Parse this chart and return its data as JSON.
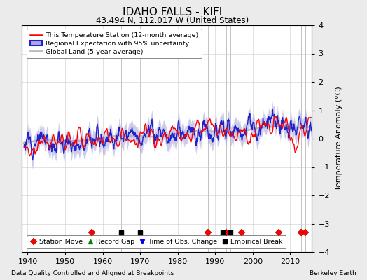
{
  "title": "IDAHO FALLS - KIFI",
  "subtitle": "43.494 N, 112.017 W (United States)",
  "ylabel": "Temperature Anomaly (°C)",
  "xlabel_note": "Data Quality Controlled and Aligned at Breakpoints",
  "source_note": "Berkeley Earth",
  "year_start": 1939,
  "year_end": 2015,
  "ylim": [
    -4,
    4
  ],
  "yticks": [
    -4,
    -3,
    -2,
    -1,
    0,
    1,
    2,
    3,
    4
  ],
  "xticks": [
    1940,
    1950,
    1960,
    1970,
    1980,
    1990,
    2000,
    2010
  ],
  "bg_color": "#ebebeb",
  "plot_bg_color": "#ffffff",
  "station_move_years": [
    1957,
    1988,
    1993,
    1997,
    2007,
    2013,
    2014
  ],
  "empirical_break_years": [
    1965,
    1970,
    1992,
    1994
  ],
  "station_color": "#ff0000",
  "regional_color": "#2222cc",
  "regional_fill": "#aaaadd",
  "global_color": "#bbbbbb",
  "random_seed": 12
}
